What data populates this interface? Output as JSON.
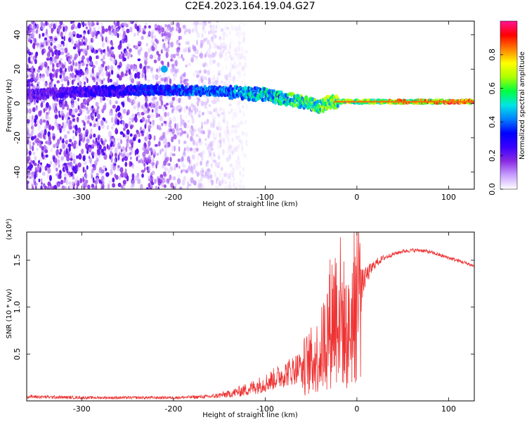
{
  "figure_title": "C2E4.2023.164.19.04.G27",
  "chart_data": [
    {
      "type": "heatmap",
      "title": "C2E4.2023.164.19.04.G27",
      "xlabel": "Height of straight line (km)",
      "ylabel": "Frequency (Hz)",
      "xlim": [
        -360,
        128
      ],
      "ylim": [
        -50,
        48
      ],
      "x_ticks": [
        -300,
        -200,
        -100,
        0,
        100
      ],
      "x_tick_labels": [
        "-300",
        "-200",
        "-100",
        "0",
        "100"
      ],
      "y_ticks": [
        -40,
        -20,
        0,
        20,
        40
      ],
      "y_tick_labels": [
        "-40",
        "-20",
        "0",
        "20",
        "40"
      ],
      "colorbar": {
        "label": "Normalized spectral amplitude",
        "range": [
          0.0,
          1.0
        ],
        "ticks": [
          0.0,
          0.2,
          0.4,
          0.6,
          0.8
        ],
        "tick_labels": [
          "0.0",
          "0.2",
          "0.4",
          "0.6",
          "0.8"
        ],
        "colors": [
          "#ffffff",
          "#c8a0ff",
          "#8a2be2",
          "#3a00ff",
          "#0000ff",
          "#0080ff",
          "#00e5e5",
          "#00ff40",
          "#aaff00",
          "#ffff00",
          "#ff8000",
          "#ff0000",
          "#ff1493"
        ]
      },
      "features": [
        {
          "name": "scattered-noise",
          "x_range": [
            -360,
            -130
          ],
          "freq_range": [
            -50,
            48
          ],
          "amplitude": 0.12
        },
        {
          "name": "signal-trace",
          "points": [
            [
              -360,
              5
            ],
            [
              -300,
              7
            ],
            [
              -215,
              8
            ],
            [
              -150,
              7
            ],
            [
              -100,
              5
            ],
            [
              -60,
              1
            ],
            [
              -40,
              -2
            ],
            [
              -30,
              1
            ],
            [
              -20,
              1
            ],
            [
              0,
              1
            ],
            [
              50,
              1
            ],
            [
              128,
              1
            ]
          ],
          "amplitude_start": 0.2,
          "amplitude_end": 0.85
        },
        {
          "name": "isolated-burst",
          "x": -210,
          "freq": 20,
          "amplitude": 0.45
        }
      ]
    },
    {
      "type": "line",
      "xlabel": "Height of straight line (km)",
      "ylabel": "SNR (10 * v/v)",
      "y_multiplier": "(x10⁴)",
      "xlim": [
        -360,
        128
      ],
      "ylim": [
        0,
        1.8
      ],
      "x_ticks": [
        -300,
        -200,
        -100,
        0,
        100
      ],
      "x_tick_labels": [
        "-300",
        "-200",
        "-100",
        "0",
        "100"
      ],
      "y_ticks": [
        0.5,
        1.0,
        1.5
      ],
      "y_tick_labels": [
        "0.5",
        "1.0",
        "1.5"
      ],
      "color": "#ee3333",
      "series": [
        {
          "name": "SNR",
          "x": [
            -360,
            -300,
            -250,
            -200,
            -160,
            -140,
            -120,
            -100,
            -80,
            -60,
            -40,
            -30,
            -20,
            -10,
            0,
            10,
            20,
            30,
            40,
            50,
            60,
            70,
            80,
            90,
            100,
            110,
            120,
            128
          ],
          "y": [
            0.04,
            0.03,
            0.03,
            0.03,
            0.04,
            0.06,
            0.1,
            0.16,
            0.24,
            0.32,
            0.45,
            0.75,
            0.95,
            0.6,
            1.05,
            1.3,
            1.45,
            1.52,
            1.56,
            1.59,
            1.6,
            1.6,
            1.58,
            1.55,
            1.52,
            1.49,
            1.46,
            1.43
          ],
          "noise": [
            0.02,
            0.015,
            0.015,
            0.015,
            0.02,
            0.04,
            0.07,
            0.1,
            0.14,
            0.18,
            0.25,
            0.35,
            0.45,
            0.35,
            0.25,
            0.1,
            0.05,
            0.03,
            0.02,
            0.02,
            0.02,
            0.02,
            0.02,
            0.02,
            0.02,
            0.02,
            0.02,
            0.02
          ]
        }
      ]
    }
  ]
}
